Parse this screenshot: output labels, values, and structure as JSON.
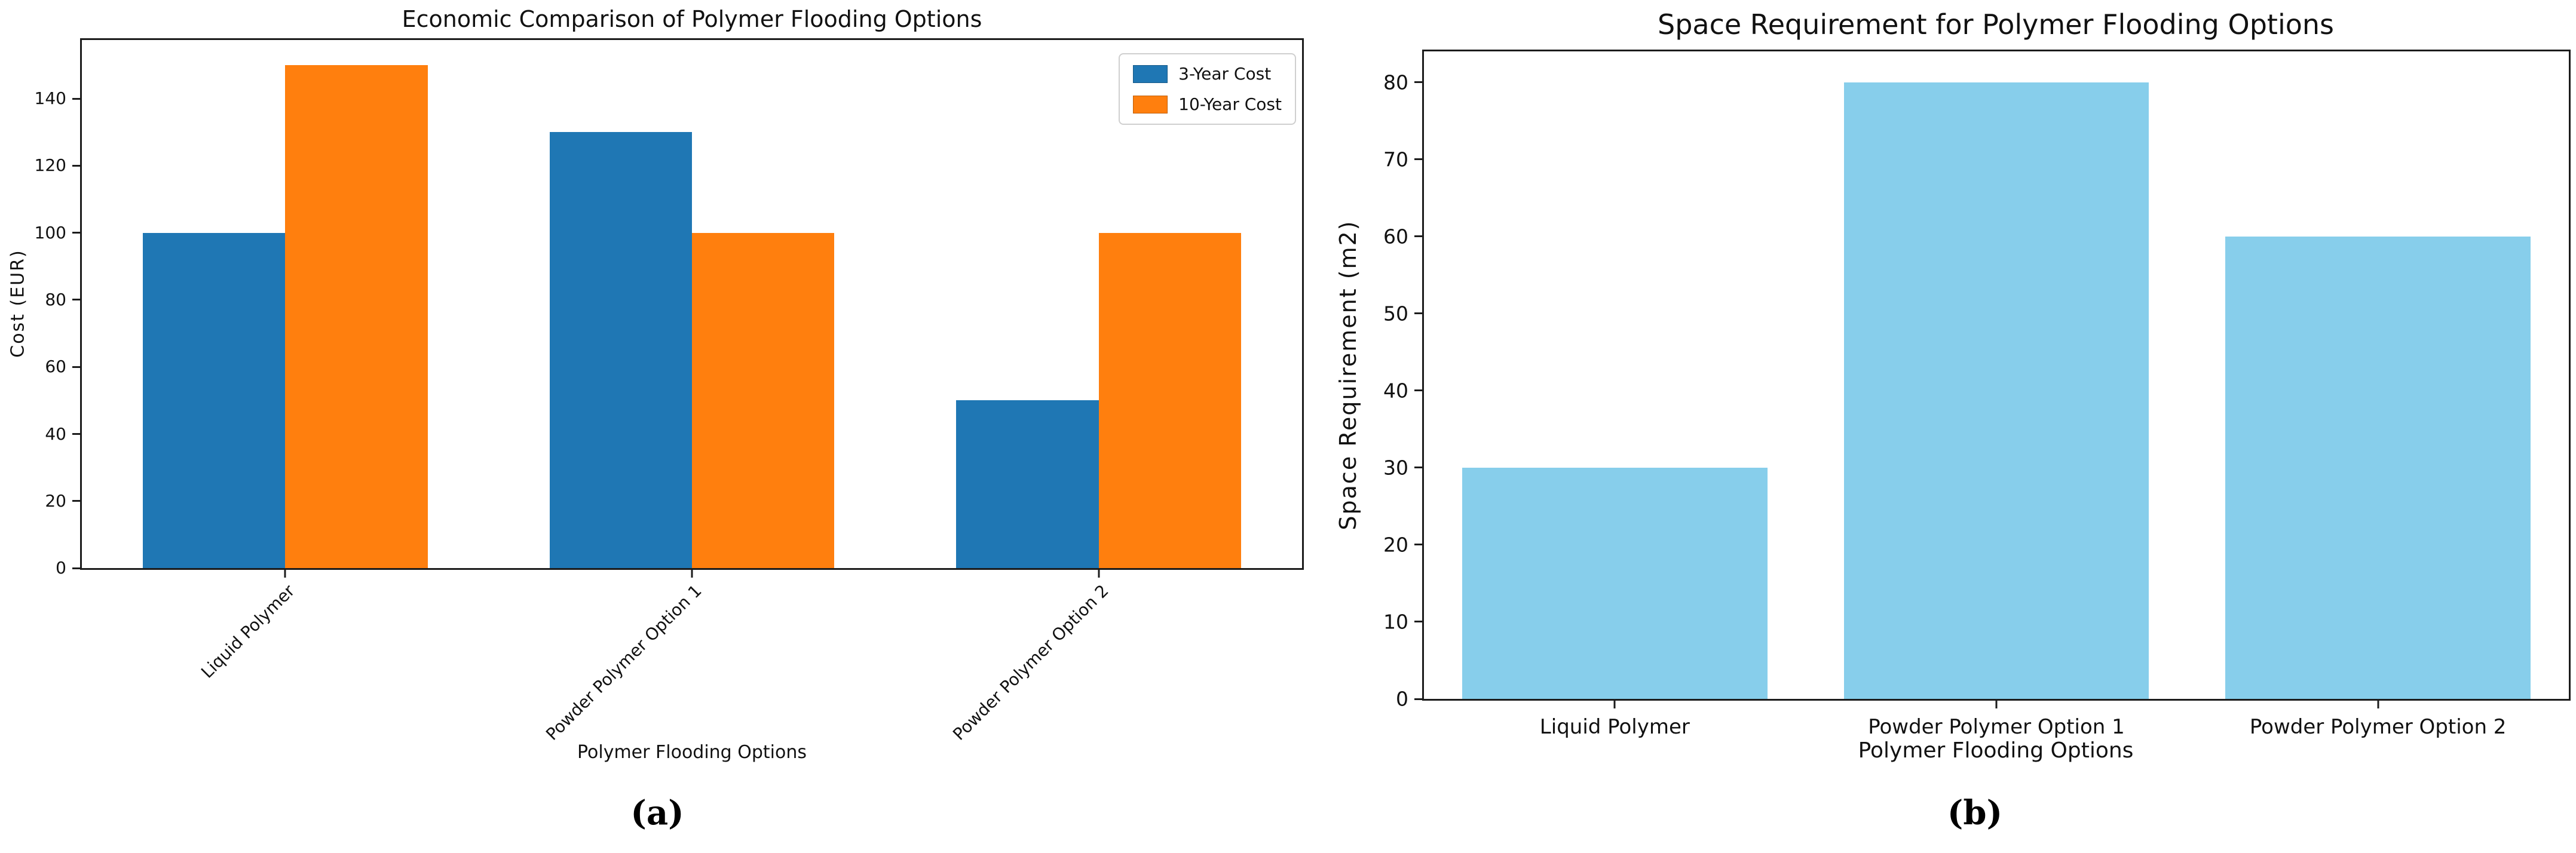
{
  "chart_data": [
    {
      "type": "bar",
      "panel_label": "(a)",
      "title": "Economic Comparison of Polymer Flooding Options",
      "xlabel": "Polymer Flooding Options",
      "ylabel": "Cost (EUR)",
      "categories": [
        "Liquid Polymer",
        "Powder Polymer Option 1",
        "Powder Polymer Option 2"
      ],
      "series": [
        {
          "name": "3-Year Cost",
          "color": "#1f77b4",
          "values": [
            100,
            130,
            50
          ]
        },
        {
          "name": "10-Year Cost",
          "color": "#ff7f0e",
          "values": [
            150,
            100,
            100
          ]
        }
      ],
      "ylim": [
        0,
        157.5
      ],
      "yticks": [
        0,
        20,
        40,
        60,
        80,
        100,
        120,
        140
      ],
      "grid": false,
      "legend_position": "upper right",
      "x_tick_rotation": 45,
      "bar_width": 0.35
    },
    {
      "type": "bar",
      "panel_label": "(b)",
      "title": "Space Requirement for Polymer Flooding Options",
      "xlabel": "Polymer Flooding Options",
      "ylabel": "Space Requirement (m2)",
      "categories": [
        "Liquid Polymer",
        "Powder Polymer Option 1",
        "Powder Polymer Option 2"
      ],
      "series": [
        {
          "name": "Space Requirement",
          "color": "#87ceeb",
          "values": [
            30,
            80,
            60
          ]
        }
      ],
      "ylim": [
        0,
        84
      ],
      "yticks": [
        0,
        10,
        20,
        30,
        40,
        50,
        60,
        70,
        80
      ],
      "grid": false,
      "legend_position": "none",
      "x_tick_rotation": 0,
      "bar_width": 0.8
    }
  ]
}
